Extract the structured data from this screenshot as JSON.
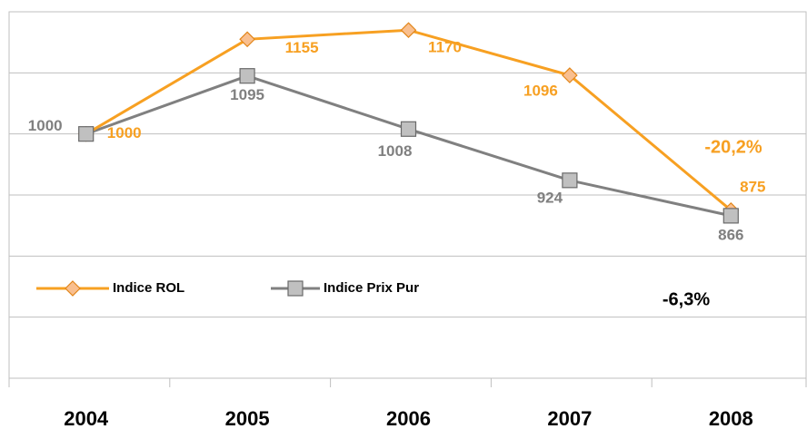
{
  "chart_data": {
    "type": "line",
    "categories": [
      "2004",
      "2005",
      "2006",
      "2007",
      "2008"
    ],
    "series": [
      {
        "name": "Indice ROL",
        "color": "#f7a022",
        "values": [
          1000,
          1155,
          1170,
          1096,
          875
        ]
      },
      {
        "name": "Indice Prix Pur",
        "color": "#808080",
        "values": [
          1000,
          1095,
          1008,
          924,
          866
        ]
      }
    ],
    "ylim": [
      600,
      1200
    ],
    "yticks": [
      600,
      700,
      800,
      900,
      1000,
      1100,
      1200
    ],
    "grid": true,
    "annotations": [
      "-20,2%",
      "-6,3%"
    ]
  }
}
